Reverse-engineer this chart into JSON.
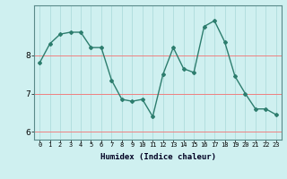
{
  "x": [
    0,
    1,
    2,
    3,
    4,
    5,
    6,
    7,
    8,
    9,
    10,
    11,
    12,
    13,
    14,
    15,
    16,
    17,
    18,
    19,
    20,
    21,
    22,
    23
  ],
  "y": [
    7.8,
    8.3,
    8.55,
    8.6,
    8.6,
    8.2,
    8.2,
    7.35,
    6.85,
    6.8,
    6.85,
    6.4,
    7.5,
    8.2,
    7.65,
    7.55,
    8.75,
    8.9,
    8.35,
    7.45,
    7.0,
    6.6,
    6.6,
    6.45
  ],
  "line_color": "#2d7d6e",
  "bg_color": "#cff0f0",
  "xlabel": "Humidex (Indice chaleur)",
  "ylim": [
    5.8,
    9.3
  ],
  "yticks": [
    6,
    7,
    8
  ],
  "xticks": [
    0,
    1,
    2,
    3,
    4,
    5,
    6,
    7,
    8,
    9,
    10,
    11,
    12,
    13,
    14,
    15,
    16,
    17,
    18,
    19,
    20,
    21,
    22,
    23
  ],
  "marker": "D",
  "markersize": 2.0,
  "linewidth": 1.0
}
